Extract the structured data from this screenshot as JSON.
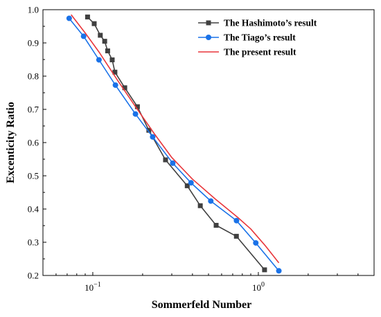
{
  "chart_data": {
    "type": "line",
    "title": "",
    "xlabel": "Sommerfeld Number",
    "ylabel": "Excenticity Ratio",
    "x_scale": "log",
    "xlim": [
      0.05,
      5
    ],
    "ylim": [
      0.2,
      1.0
    ],
    "x_ticks": [
      {
        "value": 0.1,
        "base": "10",
        "exp": "−1"
      },
      {
        "value": 1,
        "base": "10",
        "exp": "0"
      }
    ],
    "y_ticks": [
      "0.2",
      "0.3",
      "0.4",
      "0.5",
      "0.6",
      "0.7",
      "0.8",
      "0.9",
      "1.0"
    ],
    "grid": false,
    "legend_position": "top-right",
    "series": [
      {
        "name": "The Hashimoto’s result",
        "color": "#404040",
        "marker": "square",
        "points": [
          [
            0.093,
            0.978
          ],
          [
            0.102,
            0.958
          ],
          [
            0.111,
            0.923
          ],
          [
            0.118,
            0.905
          ],
          [
            0.123,
            0.876
          ],
          [
            0.131,
            0.849
          ],
          [
            0.136,
            0.812
          ],
          [
            0.156,
            0.765
          ],
          [
            0.186,
            0.708
          ],
          [
            0.218,
            0.637
          ],
          [
            0.275,
            0.548
          ],
          [
            0.372,
            0.47
          ],
          [
            0.446,
            0.41
          ],
          [
            0.556,
            0.351
          ],
          [
            0.737,
            0.318
          ],
          [
            1.09,
            0.217
          ]
        ]
      },
      {
        "name": "The Tiago’s result",
        "color": "#1a72e8",
        "marker": "circle",
        "points": [
          [
            0.072,
            0.974
          ],
          [
            0.088,
            0.92
          ],
          [
            0.109,
            0.849
          ],
          [
            0.137,
            0.773
          ],
          [
            0.181,
            0.686
          ],
          [
            0.23,
            0.617
          ],
          [
            0.304,
            0.538
          ],
          [
            0.392,
            0.479
          ],
          [
            0.516,
            0.424
          ],
          [
            0.738,
            0.365
          ],
          [
            0.965,
            0.298
          ],
          [
            1.33,
            0.214
          ]
        ]
      },
      {
        "name": "The present result",
        "color": "#e8353a",
        "marker": "none",
        "points": [
          [
            0.074,
            0.985
          ],
          [
            0.09,
            0.93
          ],
          [
            0.11,
            0.87
          ],
          [
            0.14,
            0.79
          ],
          [
            0.18,
            0.71
          ],
          [
            0.235,
            0.627
          ],
          [
            0.3,
            0.555
          ],
          [
            0.4,
            0.49
          ],
          [
            0.55,
            0.43
          ],
          [
            0.75,
            0.375
          ],
          [
            0.9,
            0.34
          ],
          [
            1.1,
            0.29
          ],
          [
            1.33,
            0.238
          ]
        ]
      }
    ]
  }
}
